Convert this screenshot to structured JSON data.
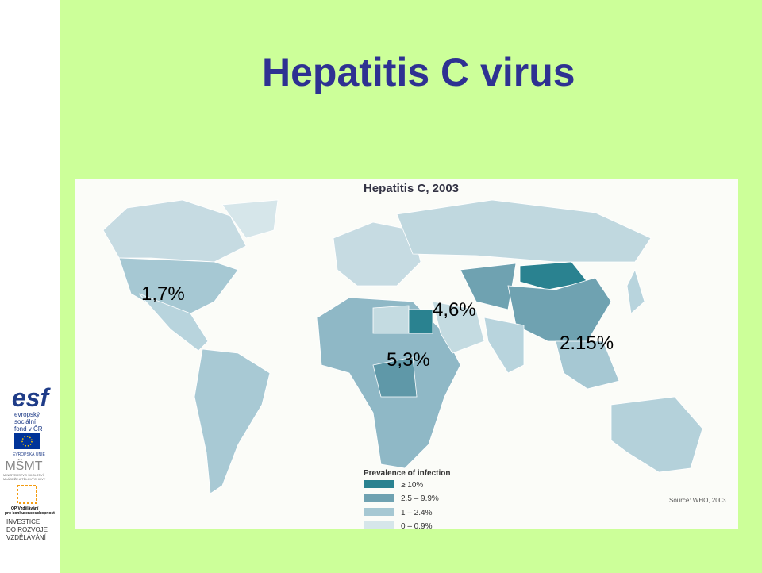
{
  "title": "Hepatitis C virus",
  "map": {
    "title": "Hepatitis C, 2003",
    "annotations": [
      "1,7%",
      "4,6%",
      "5,3%",
      "2.15%"
    ],
    "legend": {
      "title": "Prevalence of infection",
      "items": [
        "≥ 10%",
        "2.5 – 9.9%",
        "1 – 2.4%",
        "0 – 0.9%"
      ]
    },
    "source": "Source: WHO, 2003"
  },
  "sidebar": {
    "esf": "esf",
    "esf_caption": [
      "evropský",
      "sociální",
      "fond v ČR"
    ],
    "eu": "EVROPSKÁ UNIE",
    "msmt": "MŠMT",
    "msmt_caption": [
      "MINISTERSTVO ŠKOLSTVÍ,",
      "MLÁDEŽE A TĚLOVÝCHOVY"
    ],
    "op": [
      "OP Vzdělávání",
      "pro konkurenceschopnost"
    ],
    "investice": [
      "INVESTICE",
      "DO ROZVOJE",
      "VZDĚLÁVÁNÍ"
    ]
  }
}
